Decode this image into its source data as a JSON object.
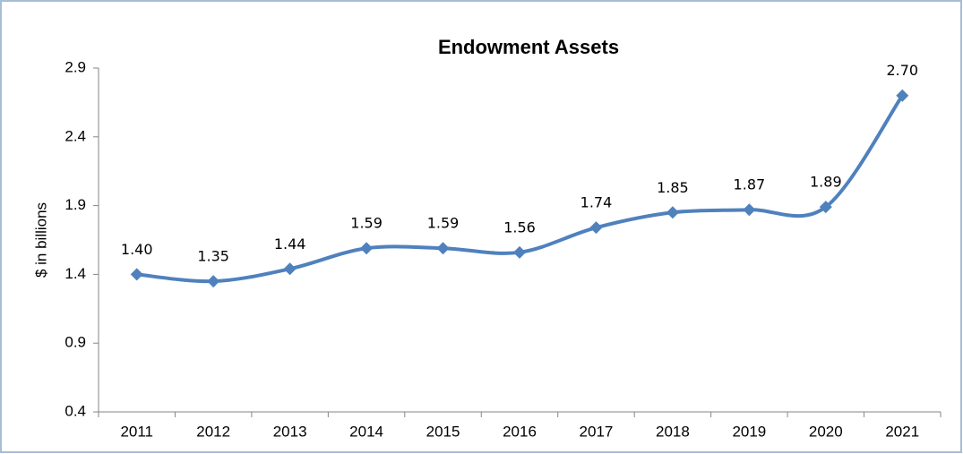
{
  "chart_data": {
    "type": "line",
    "title": "Endowment Assets",
    "y_label": "$ in billions",
    "categories": [
      "2011",
      "2012",
      "2013",
      "2014",
      "2015",
      "2016",
      "2017",
      "2018",
      "2019",
      "2020",
      "2021"
    ],
    "series": [
      {
        "name": "Endowment Assets",
        "color": "#4f81bd",
        "values": [
          1.4,
          1.35,
          1.44,
          1.59,
          1.59,
          1.56,
          1.74,
          1.85,
          1.87,
          1.89,
          2.7
        ],
        "value_labels": [
          "1.40",
          "1.35",
          "1.44",
          "1.59",
          "1.59",
          "1.56",
          "1.74",
          "1.85",
          "1.87",
          "1.89",
          "2.70"
        ]
      }
    ],
    "ylim": [
      0.4,
      2.9
    ],
    "yticks": [
      0.4,
      0.9,
      1.4,
      1.9,
      2.4,
      2.9
    ],
    "grid": false,
    "smooth": true
  }
}
